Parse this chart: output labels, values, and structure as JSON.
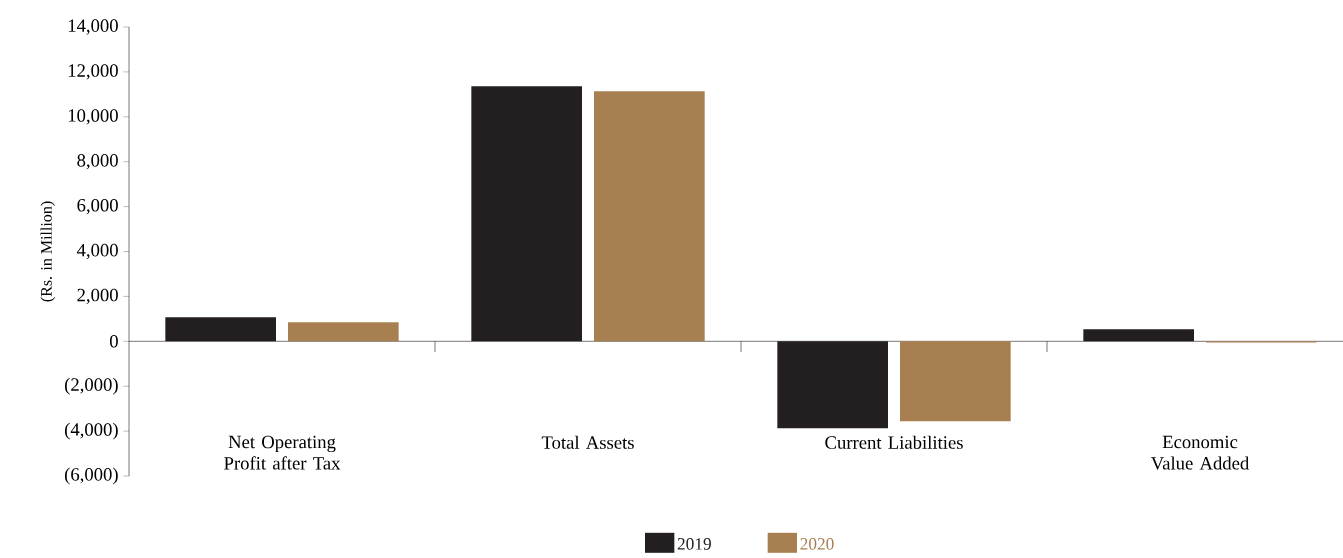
{
  "chart_data": {
    "type": "bar",
    "ylabel": "(Rs. in Million)",
    "categories": [
      "Net Operating Profit after Tax",
      "Total Assets",
      "Current Liabilities",
      "Economic Value Added"
    ],
    "series": [
      {
        "name": "2019",
        "color": "#231f20",
        "values": [
          1070,
          11360,
          -3870,
          540
        ]
      },
      {
        "name": "2020",
        "color": "#a87f50",
        "values": [
          850,
          11140,
          -3560,
          -50
        ]
      }
    ],
    "ylim": [
      -6000,
      14000
    ],
    "yticks": [
      {
        "value": -6000,
        "label": "(6,000)"
      },
      {
        "value": -4000,
        "label": "(4,000)"
      },
      {
        "value": -2000,
        "label": "(2,000)"
      },
      0,
      {
        "value": 2000,
        "label": "2,000"
      },
      {
        "value": 4000,
        "label": "4,000"
      },
      {
        "value": 6000,
        "label": "6,000"
      },
      {
        "value": 8000,
        "label": "8,000"
      },
      {
        "value": 10000,
        "label": "10,000"
      },
      {
        "value": 12000,
        "label": "12,000"
      },
      {
        "value": 14000,
        "label": "14,000"
      }
    ],
    "legend": "bottom"
  }
}
